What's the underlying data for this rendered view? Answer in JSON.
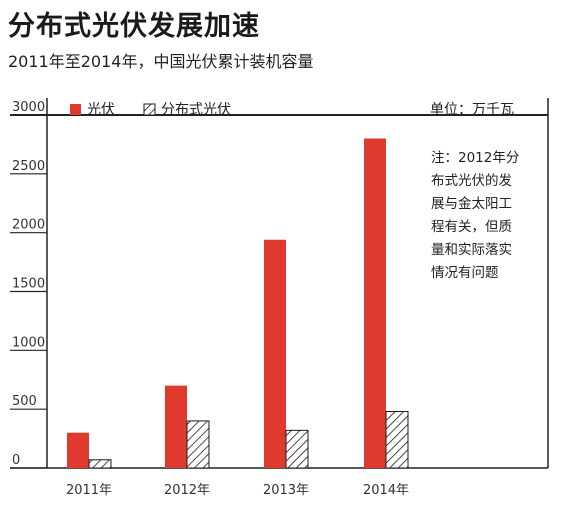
{
  "title": "分布式光伏发展加速",
  "subtitle": "2011年至2014年，中国光伏累计装机容量",
  "unit_label": "单位：万千瓦",
  "note_lines": [
    "注：2012年分",
    "布式光伏的发",
    "展与金太阳工",
    "程有关，但质",
    "量和实际落实",
    "情况有问题"
  ],
  "colors": {
    "solar": "#e03a2e",
    "distributed_hatch": "#1a1a1a",
    "axis": "#222222"
  },
  "chart_data": {
    "type": "bar",
    "title": "分布式光伏发展加速",
    "subtitle": "2011年至2014年，中国光伏累计装机容量",
    "categories": [
      "2011年",
      "2012年",
      "2013年",
      "2014年"
    ],
    "series": [
      {
        "name": "光伏",
        "values": [
          300,
          700,
          1940,
          2800
        ],
        "style": "solid-red"
      },
      {
        "name": "分布式光伏",
        "values": [
          70,
          400,
          320,
          480
        ],
        "style": "hatched"
      }
    ],
    "ylim": [
      0,
      3000
    ],
    "yticks": [
      0,
      500,
      1000,
      1500,
      2000,
      2500,
      3000
    ],
    "xlabel": "",
    "ylabel": "",
    "grid": false,
    "legend": "top-left"
  }
}
